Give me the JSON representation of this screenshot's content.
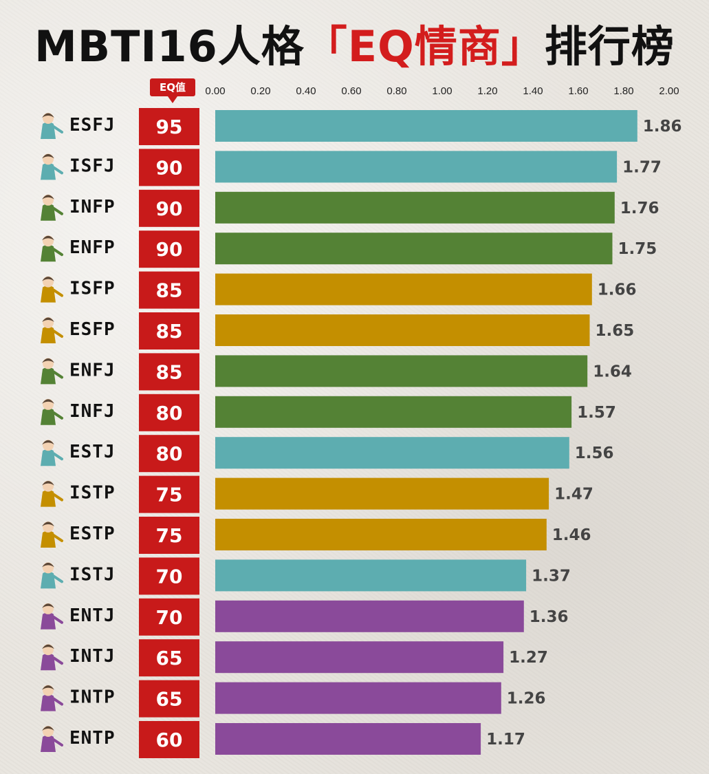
{
  "title": {
    "part1": "MBTI16人格",
    "part2": "「EQ情商」",
    "part3": "排行榜"
  },
  "eq_header": "EQ值",
  "colors": {
    "SJ": "#5dadb0",
    "NF": "#548235",
    "SP": "#c48f00",
    "NT": "#8a4a9a",
    "eq_box": "#c81a1a"
  },
  "chart_data": {
    "type": "bar",
    "orientation": "horizontal",
    "categories": [
      "ESFJ",
      "ISFJ",
      "INFP",
      "ENFP",
      "ISFP",
      "ESFP",
      "ENFJ",
      "INFJ",
      "ESTJ",
      "ISTP",
      "ESTP",
      "ISTJ",
      "ENTJ",
      "INTJ",
      "INTP",
      "ENTP"
    ],
    "values": [
      1.86,
      1.77,
      1.76,
      1.75,
      1.66,
      1.65,
      1.64,
      1.57,
      1.56,
      1.47,
      1.46,
      1.37,
      1.36,
      1.27,
      1.26,
      1.17
    ],
    "value_labels": [
      "1.86",
      "1.77",
      "1.76",
      "1.75",
      "1.66",
      "1.65",
      "1.64",
      "1.57",
      "1.56",
      "1.47",
      "1.46",
      "1.37",
      "1.36",
      "1.27",
      "1.26",
      "1.17"
    ],
    "eq_values": [
      "95",
      "90",
      "90",
      "90",
      "85",
      "85",
      "85",
      "80",
      "80",
      "75",
      "75",
      "70",
      "70",
      "65",
      "65",
      "60"
    ],
    "groups": [
      "SJ",
      "SJ",
      "NF",
      "NF",
      "SP",
      "SP",
      "NF",
      "NF",
      "SJ",
      "SP",
      "SP",
      "SJ",
      "NT",
      "NT",
      "NT",
      "NT"
    ],
    "xlim": [
      0,
      2
    ],
    "x_ticks": [
      "0.00",
      "0.20",
      "0.40",
      "0.60",
      "0.80",
      "1.00",
      "1.20",
      "1.40",
      "1.60",
      "1.80",
      "2.00"
    ],
    "grid": false,
    "legend": "none"
  }
}
